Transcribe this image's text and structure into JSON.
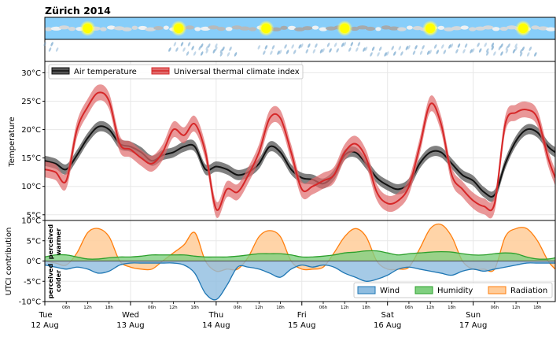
{
  "title": "Zürich 2014",
  "day_ticks": [
    {
      "day": "Tue",
      "date": "12 Aug"
    },
    {
      "day": "Wed",
      "date": "13 Aug"
    },
    {
      "day": "Thu",
      "date": "14 Aug"
    },
    {
      "day": "Fri",
      "date": "15 Aug"
    },
    {
      "day": "Sat",
      "date": "16 Aug"
    },
    {
      "day": "Sun",
      "date": "17 Aug"
    }
  ],
  "hour_ticks": [
    "06h",
    "12h",
    "18h"
  ],
  "annotations": {
    "warmer": "perceived warmer",
    "colder": "perceived colder"
  },
  "colors": {
    "sky": "#87cefa",
    "air": "#111111",
    "air_band": "#555555",
    "utci": "#d62728",
    "utci_band": "#e06b6c",
    "wind": "#1f77b4",
    "humidity": "#2ca02c",
    "radiation": "#ff7f0e"
  },
  "chart_data": [
    {
      "type": "line",
      "ylabel": "Temperature",
      "ylim": [
        4,
        32
      ],
      "yticks": [
        "5°C",
        "10°C",
        "15°C",
        "20°C",
        "25°C",
        "30°C"
      ],
      "ytick_values": [
        5,
        10,
        15,
        20,
        25,
        30
      ],
      "x_unit": "hours from Tue 12 Aug 00h",
      "xlim": [
        0,
        143
      ],
      "legend_position": "top-left",
      "series": [
        {
          "name": "Air temperature",
          "x": [
            0,
            3,
            6,
            9,
            12,
            15,
            18,
            21,
            24,
            27,
            30,
            33,
            36,
            39,
            42,
            45,
            48,
            51,
            54,
            57,
            60,
            63,
            66,
            69,
            72,
            75,
            78,
            81,
            84,
            87,
            90,
            93,
            96,
            99,
            102,
            105,
            108,
            111,
            114,
            117,
            120,
            123,
            126,
            129,
            132,
            135,
            138,
            141,
            143
          ],
          "values": [
            14.5,
            14,
            13,
            15.5,
            18.5,
            20.5,
            20,
            17.5,
            17,
            16,
            14.5,
            15.5,
            16,
            17,
            17,
            13,
            13.5,
            13,
            12,
            12.5,
            14,
            17,
            16,
            13,
            11.5,
            11.2,
            10.5,
            12,
            15.5,
            16,
            14,
            11.5,
            10.2,
            9.5,
            10.5,
            14,
            16,
            16,
            14,
            12,
            11,
            9,
            8.5,
            14,
            18,
            20,
            19.5,
            17,
            16
          ],
          "band": 0.9
        },
        {
          "name": "Universal thermal climate index",
          "x": [
            0,
            3,
            6,
            9,
            12,
            15,
            18,
            21,
            24,
            27,
            30,
            33,
            36,
            39,
            42,
            45,
            48,
            51,
            54,
            57,
            60,
            63,
            66,
            69,
            72,
            75,
            78,
            81,
            84,
            87,
            90,
            93,
            96,
            99,
            102,
            105,
            108,
            111,
            114,
            117,
            120,
            123,
            126,
            129,
            132,
            135,
            138,
            141,
            143
          ],
          "values": [
            13,
            12.5,
            11,
            20,
            24,
            26.5,
            25,
            17.5,
            16.5,
            15,
            14,
            16,
            20,
            19,
            21,
            16,
            6,
            9.5,
            9,
            12,
            16,
            22,
            22,
            16,
            9.5,
            10,
            11,
            12,
            16,
            17.5,
            15,
            9,
            7,
            7.5,
            10,
            17,
            24.5,
            21,
            12,
            9.5,
            7.5,
            6.5,
            7,
            21,
            23,
            23.5,
            22,
            15,
            11.5
          ],
          "band": 1.4
        }
      ]
    },
    {
      "type": "area",
      "ylabel": "UTCI contribution",
      "ylim": [
        -10,
        10
      ],
      "yticks": [
        "-10°C",
        "-5°C",
        "0°C",
        "5°C",
        "10°C"
      ],
      "ytick_values": [
        -10,
        -5,
        0,
        5,
        10
      ],
      "x_unit": "hours from Tue 12 Aug 00h",
      "legend_position": "bottom-right",
      "series": [
        {
          "name": "Wind",
          "x": [
            0,
            3,
            6,
            9,
            12,
            15,
            18,
            21,
            24,
            27,
            30,
            33,
            36,
            39,
            42,
            45,
            48,
            51,
            54,
            57,
            60,
            63,
            66,
            69,
            72,
            75,
            78,
            81,
            84,
            87,
            90,
            93,
            96,
            99,
            102,
            105,
            108,
            111,
            114,
            117,
            120,
            123,
            126,
            129,
            132,
            135,
            138,
            141,
            143
          ],
          "values": [
            -1,
            -1.5,
            -2,
            -1.5,
            -2,
            -3,
            -2.5,
            -1,
            -0.5,
            -0.5,
            -0.5,
            -0.5,
            -0.5,
            -1,
            -3,
            -8,
            -9.5,
            -6,
            -1.5,
            -1.5,
            -2,
            -3,
            -4,
            -2,
            -1,
            -1.5,
            -1,
            -1.5,
            -3,
            -4,
            -5,
            -4.5,
            -3.5,
            -2,
            -1.5,
            -2,
            -2.5,
            -3,
            -3.5,
            -2.5,
            -2,
            -2.5,
            -2,
            -1.5,
            -1,
            -0.5,
            -0.5,
            -0.5,
            -0.5
          ]
        },
        {
          "name": "Humidity",
          "x": [
            0,
            3,
            6,
            9,
            12,
            15,
            18,
            21,
            24,
            27,
            30,
            33,
            36,
            39,
            42,
            45,
            48,
            51,
            54,
            57,
            60,
            63,
            66,
            69,
            72,
            75,
            78,
            81,
            84,
            87,
            90,
            93,
            96,
            99,
            102,
            105,
            108,
            111,
            114,
            117,
            120,
            123,
            126,
            129,
            132,
            135,
            138,
            141,
            143
          ],
          "values": [
            1,
            1.5,
            1.5,
            1,
            0.5,
            0.5,
            0.8,
            1,
            1,
            1.2,
            1.5,
            1.5,
            1.5,
            1.5,
            1.2,
            1,
            1,
            1,
            1.2,
            1.5,
            1.8,
            1.8,
            1.8,
            1.5,
            1,
            1,
            1.2,
            1.5,
            2,
            2.2,
            2.5,
            2.5,
            2,
            1.5,
            1.8,
            2,
            2.2,
            2.3,
            2.2,
            1.8,
            1.5,
            1.5,
            1.8,
            2,
            1.8,
            1,
            0.5,
            0.5,
            0.8
          ]
        },
        {
          "name": "Radiation",
          "x": [
            0,
            3,
            6,
            9,
            12,
            15,
            18,
            21,
            24,
            27,
            30,
            33,
            36,
            39,
            42,
            45,
            48,
            51,
            54,
            57,
            60,
            63,
            66,
            69,
            72,
            75,
            78,
            81,
            84,
            87,
            90,
            93,
            96,
            99,
            102,
            105,
            108,
            111,
            114,
            117,
            120,
            123,
            126,
            129,
            132,
            135,
            138,
            141,
            143
          ],
          "values": [
            0,
            -0.5,
            -1,
            2,
            7,
            8,
            6,
            0,
            -1.5,
            -2,
            -2,
            0,
            2,
            4,
            7,
            0,
            -2.5,
            -2,
            -2,
            1,
            6,
            7.5,
            6,
            0,
            -2,
            -2,
            -1.5,
            2,
            6,
            8,
            6,
            0,
            -2,
            -2,
            -1.5,
            3,
            8,
            9,
            6,
            0,
            -2,
            -2,
            -2,
            6,
            8,
            8,
            5,
            0,
            -2
          ]
        }
      ]
    }
  ]
}
